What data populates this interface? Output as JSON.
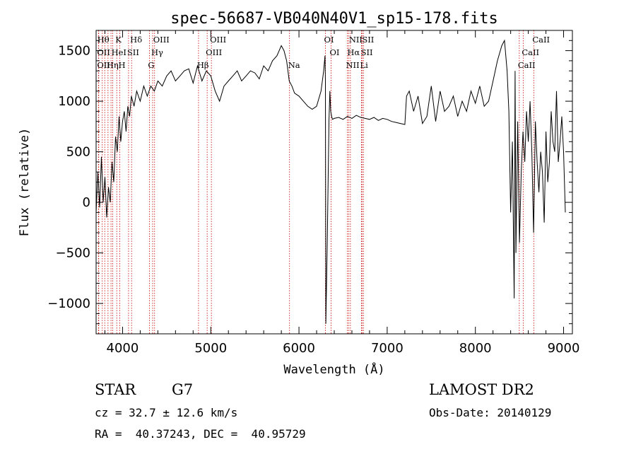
{
  "chart_data": {
    "type": "line",
    "title": "spec-56687-VB040N40V1_sp15-178.fits",
    "xlabel": "Wavelength (Å)",
    "ylabel": "Flux (relative)",
    "xlim": [
      3700,
      9100
    ],
    "ylim": [
      -1300,
      1700
    ],
    "x_ticks": [
      4000,
      5000,
      6000,
      7000,
      8000,
      9000
    ],
    "y_ticks": [
      -1000,
      -500,
      0,
      500,
      1000,
      1500
    ],
    "grid": false,
    "line_color": "#000000",
    "marker_color": "#cc0000",
    "series": [
      {
        "x": [
          3700,
          3720,
          3740,
          3760,
          3780,
          3800,
          3820,
          3840,
          3860,
          3880,
          3900,
          3920,
          3940,
          3960,
          3980,
          4000,
          4020,
          4040,
          4060,
          4080,
          4100,
          4130,
          4160,
          4200,
          4240,
          4280,
          4320,
          4360,
          4400,
          4450,
          4500,
          4550,
          4600,
          4650,
          4700,
          4750,
          4800,
          4850,
          4900,
          4950,
          5000,
          5050,
          5100,
          5150,
          5200,
          5250,
          5300,
          5350,
          5400,
          5450,
          5500,
          5550,
          5600,
          5650,
          5700,
          5750,
          5800,
          5830,
          5860,
          5890,
          5920,
          5950,
          6000,
          6050,
          6100,
          6150,
          6200,
          6250,
          6280,
          6295,
          6300,
          6305,
          6320,
          6340,
          6350,
          6360,
          6370,
          6380,
          6400,
          6450,
          6500,
          6550,
          6600,
          6650,
          6700,
          6750,
          6800,
          6850,
          6900,
          6950,
          7000,
          7050,
          7100,
          7150,
          7200,
          7220,
          7250,
          7300,
          7350,
          7400,
          7450,
          7500,
          7550,
          7600,
          7650,
          7700,
          7750,
          7800,
          7850,
          7900,
          7950,
          8000,
          8050,
          8100,
          8150,
          8200,
          8250,
          8300,
          8330,
          8360,
          8380,
          8400,
          8420,
          8440,
          8450,
          8460,
          8480,
          8500,
          8520,
          8540,
          8560,
          8580,
          8600,
          8620,
          8640,
          8660,
          8680,
          8700,
          8720,
          8740,
          8760,
          8780,
          8800,
          8820,
          8840,
          8860,
          8880,
          8900,
          8920,
          8940,
          8960,
          8980,
          9000,
          9020
        ],
        "y": [
          -100,
          300,
          -50,
          450,
          0,
          250,
          -150,
          150,
          0,
          400,
          200,
          650,
          500,
          850,
          600,
          800,
          900,
          700,
          950,
          850,
          1050,
          950,
          1100,
          1000,
          1150,
          1050,
          1150,
          1100,
          1200,
          1150,
          1250,
          1300,
          1200,
          1250,
          1300,
          1320,
          1180,
          1350,
          1200,
          1300,
          1250,
          1100,
          1000,
          1150,
          1200,
          1250,
          1300,
          1200,
          1250,
          1300,
          1280,
          1220,
          1350,
          1300,
          1400,
          1450,
          1550,
          1500,
          1400,
          1200,
          1150,
          1080,
          1050,
          1000,
          950,
          920,
          950,
          1100,
          1300,
          1450,
          1200,
          -1200,
          -450,
          800,
          1100,
          900,
          850,
          820,
          830,
          840,
          820,
          850,
          830,
          860,
          840,
          830,
          820,
          840,
          810,
          830,
          820,
          800,
          790,
          780,
          770,
          1050,
          1100,
          900,
          1050,
          780,
          850,
          1150,
          800,
          1100,
          900,
          950,
          1050,
          850,
          1000,
          900,
          1100,
          980,
          1150,
          950,
          1000,
          1200,
          1400,
          1550,
          1600,
          1300,
          900,
          -100,
          600,
          -950,
          1300,
          -500,
          800,
          -400,
          300,
          700,
          400,
          900,
          600,
          1000,
          500,
          -300,
          800,
          400,
          100,
          500,
          300,
          -200,
          700,
          200,
          400,
          900,
          600,
          500,
          1100,
          400,
          600,
          850,
          500,
          -100
        ]
      }
    ],
    "line_markers": [
      {
        "x": 3730,
        "label": "Hθ",
        "row": 0
      },
      {
        "x": 3727,
        "label": "OII",
        "row": 1
      },
      {
        "x": 3727,
        "label": "OII",
        "row": 2
      },
      {
        "x": 3770,
        "label": "",
        "row": 0
      },
      {
        "x": 3798,
        "label": "",
        "row": 0
      },
      {
        "x": 3835,
        "label": "Hη",
        "row": 2
      },
      {
        "x": 3869,
        "label": "",
        "row": 0
      },
      {
        "x": 3889,
        "label": "HeI",
        "row": 1
      },
      {
        "x": 3934,
        "label": "K",
        "row": 0
      },
      {
        "x": 3968,
        "label": "H",
        "row": 2
      },
      {
        "x": 4068,
        "label": "SII",
        "row": 1
      },
      {
        "x": 4102,
        "label": "Hδ",
        "row": 0
      },
      {
        "x": 4304,
        "label": "G",
        "row": 2
      },
      {
        "x": 4341,
        "label": "Hγ",
        "row": 1
      },
      {
        "x": 4363,
        "label": "OIII",
        "row": 0
      },
      {
        "x": 4861,
        "label": "Hβ",
        "row": 2
      },
      {
        "x": 4959,
        "label": "OIII",
        "row": 1
      },
      {
        "x": 5007,
        "label": "OIII",
        "row": 0
      },
      {
        "x": 5893,
        "label": "Na",
        "row": 2
      },
      {
        "x": 6300,
        "label": "OI",
        "row": 0
      },
      {
        "x": 6364,
        "label": "OI",
        "row": 1
      },
      {
        "x": 6548,
        "label": "NII",
        "row": 2
      },
      {
        "x": 6563,
        "label": "Hα",
        "row": 1
      },
      {
        "x": 6583,
        "label": "NII",
        "row": 0
      },
      {
        "x": 6708,
        "label": "Li",
        "row": 2
      },
      {
        "x": 6717,
        "label": "SII",
        "row": 1
      },
      {
        "x": 6731,
        "label": "SII",
        "row": 0
      },
      {
        "x": 8498,
        "label": "CaII",
        "row": 2
      },
      {
        "x": 8542,
        "label": "CaII",
        "row": 1
      },
      {
        "x": 8662,
        "label": "CaII",
        "row": 0
      }
    ]
  },
  "info": {
    "object_class": "STAR",
    "subclass": "G7",
    "cz": "cz = 32.7 ± 12.6 km/s",
    "coords": "RA =  40.37243, DEC =  40.95729",
    "survey": "LAMOST DR2",
    "obs_date": "Obs-Date: 20140129"
  }
}
